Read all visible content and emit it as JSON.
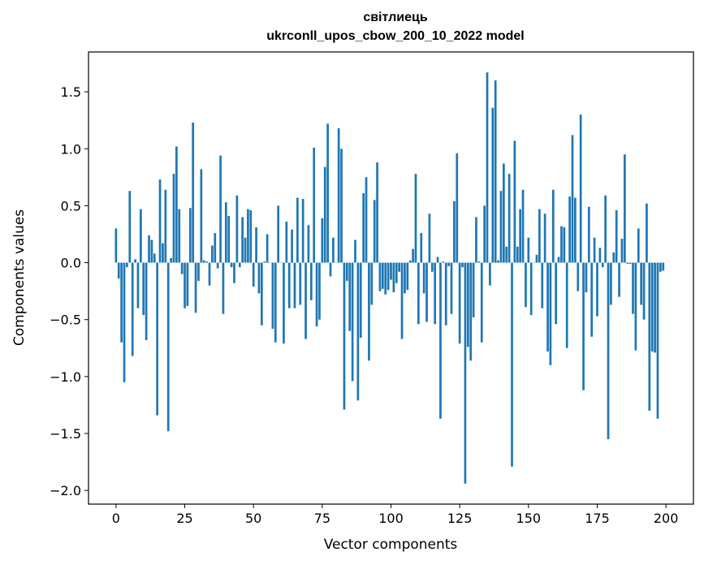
{
  "chart_data": {
    "type": "bar",
    "title": "світлиець",
    "subtitle": "ukrconll_upos_cbow_200_10_2022 model",
    "xlabel": "Vector components",
    "ylabel": "Components values",
    "xlim": [
      -10,
      210
    ],
    "ylim": [
      -2.12,
      1.85
    ],
    "xticks": [
      0,
      25,
      50,
      75,
      100,
      125,
      150,
      175,
      200
    ],
    "xtick_labels": [
      "0",
      "25",
      "50",
      "75",
      "100",
      "125",
      "150",
      "175",
      "200"
    ],
    "yticks": [
      -2.0,
      -1.5,
      -1.0,
      -0.5,
      0.0,
      0.5,
      1.0,
      1.5
    ],
    "ytick_labels": [
      "−2.0",
      "−1.5",
      "−1.0",
      "−0.5",
      "0.0",
      "0.5",
      "1.0",
      "1.5"
    ],
    "grid": false,
    "color": "#1f77b4",
    "values": [
      0.3,
      -0.14,
      -0.7,
      -1.05,
      -0.04,
      0.63,
      -0.82,
      0.03,
      -0.4,
      0.47,
      -0.46,
      -0.68,
      0.24,
      0.2,
      0.08,
      -1.34,
      0.73,
      0.17,
      0.64,
      -1.48,
      0.04,
      0.78,
      1.02,
      0.47,
      -0.1,
      -0.4,
      -0.38,
      0.48,
      1.23,
      -0.44,
      -0.16,
      0.82,
      0.02,
      0.01,
      -0.2,
      0.15,
      0.26,
      -0.05,
      0.94,
      -0.45,
      0.53,
      0.41,
      -0.04,
      -0.18,
      0.59,
      -0.04,
      0.4,
      0.22,
      0.47,
      0.46,
      -0.21,
      0.31,
      -0.27,
      -0.55,
      0.01,
      0.25,
      0.0,
      -0.58,
      -0.7,
      0.5,
      0.0,
      -0.71,
      0.36,
      -0.4,
      0.29,
      -0.4,
      0.57,
      -0.37,
      0.56,
      -0.67,
      0.33,
      -0.33,
      1.01,
      -0.56,
      -0.5,
      0.39,
      0.84,
      1.22,
      -0.12,
      0.22,
      0.0,
      1.18,
      1.0,
      -1.29,
      -0.16,
      -0.6,
      -1.04,
      0.2,
      -1.21,
      -0.66,
      0.61,
      0.75,
      -0.86,
      -0.37,
      0.55,
      0.88,
      -0.25,
      -0.23,
      -0.28,
      -0.24,
      -0.15,
      -0.26,
      -0.18,
      -0.08,
      -0.67,
      -0.27,
      -0.24,
      0.02,
      0.12,
      0.78,
      -0.54,
      0.26,
      -0.27,
      -0.52,
      0.43,
      -0.08,
      -0.54,
      0.05,
      -1.37,
      0.01,
      -0.55,
      -0.03,
      -0.45,
      0.54,
      0.96,
      -0.71,
      -0.04,
      -1.94,
      -0.74,
      -0.86,
      -0.48,
      0.4,
      0.01,
      -0.7,
      0.5,
      1.67,
      -0.2,
      1.36,
      1.6,
      0.02,
      0.63,
      0.87,
      0.14,
      0.78,
      -1.79,
      1.07,
      0.14,
      0.47,
      0.64,
      -0.39,
      0.22,
      -0.46,
      0.0,
      0.07,
      0.47,
      -0.4,
      0.43,
      -0.78,
      -0.9,
      0.64,
      -0.54,
      0.05,
      0.32,
      0.31,
      -0.75,
      0.58,
      1.12,
      0.57,
      -0.25,
      1.3,
      -1.12,
      -0.26,
      0.49,
      -0.65,
      0.22,
      -0.47,
      0.13,
      -0.04,
      0.59,
      -1.55,
      -0.37,
      0.09,
      0.46,
      -0.3,
      0.21,
      0.95,
      -0.01,
      -0.01,
      -0.45,
      -0.77,
      0.3,
      -0.37,
      -0.5,
      0.52,
      -1.3,
      -0.78,
      -0.79,
      -1.37,
      -0.08,
      -0.07
    ]
  }
}
